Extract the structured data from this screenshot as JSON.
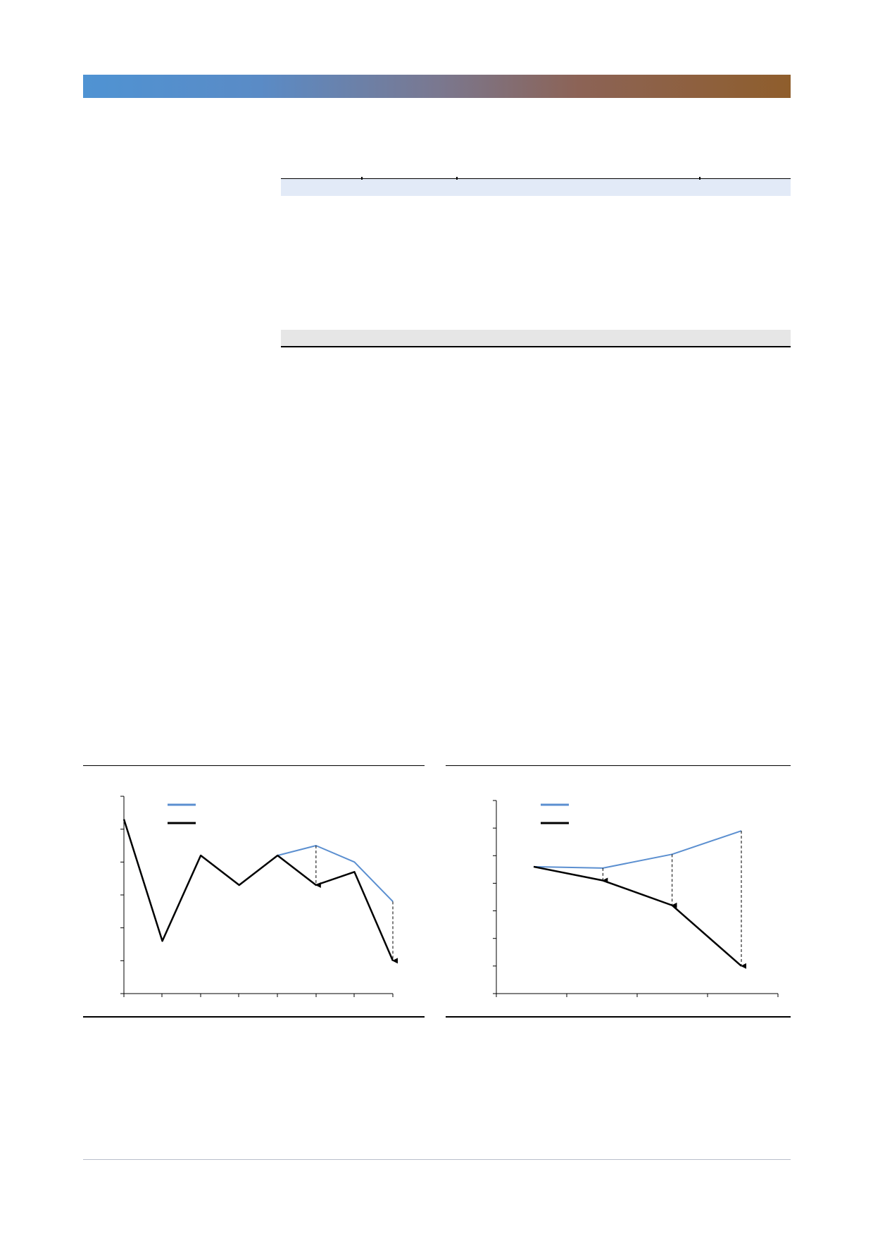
{
  "colors": {
    "banner_start": "#4f93d3",
    "banner_end": "#8f5e2c",
    "table_header_fill": "#e2eaf7",
    "table_footer_fill": "#e6e6e6",
    "series_blue": "#5b8fd0",
    "series_black": "#000000"
  },
  "chart_data": [
    {
      "type": "line",
      "x": [
        1,
        2,
        3,
        4,
        5,
        6,
        7,
        8
      ],
      "ylim": [
        0,
        6
      ],
      "series": [
        {
          "color": "#5b8fd0",
          "values": [
            5.3,
            1.6,
            4.2,
            3.3,
            4.2,
            4.5,
            4.0,
            2.8
          ]
        },
        {
          "color": "#000000",
          "values": [
            5.3,
            1.6,
            4.2,
            3.3,
            4.2,
            3.3,
            3.7,
            1.0
          ]
        }
      ],
      "drop_arrows_at_x": [
        6,
        8
      ],
      "grid": false,
      "legend": "top-left"
    },
    {
      "type": "line",
      "x": [
        1,
        2,
        3,
        4
      ],
      "ylim": [
        0,
        7
      ],
      "series": [
        {
          "color": "#5b8fd0",
          "values": [
            4.6,
            4.55,
            5.05,
            5.9
          ]
        },
        {
          "color": "#000000",
          "values": [
            4.6,
            4.1,
            3.2,
            1.0
          ]
        }
      ],
      "drop_arrows_at_x": [
        2,
        3,
        4
      ],
      "grid": false,
      "legend": "top-left"
    }
  ]
}
